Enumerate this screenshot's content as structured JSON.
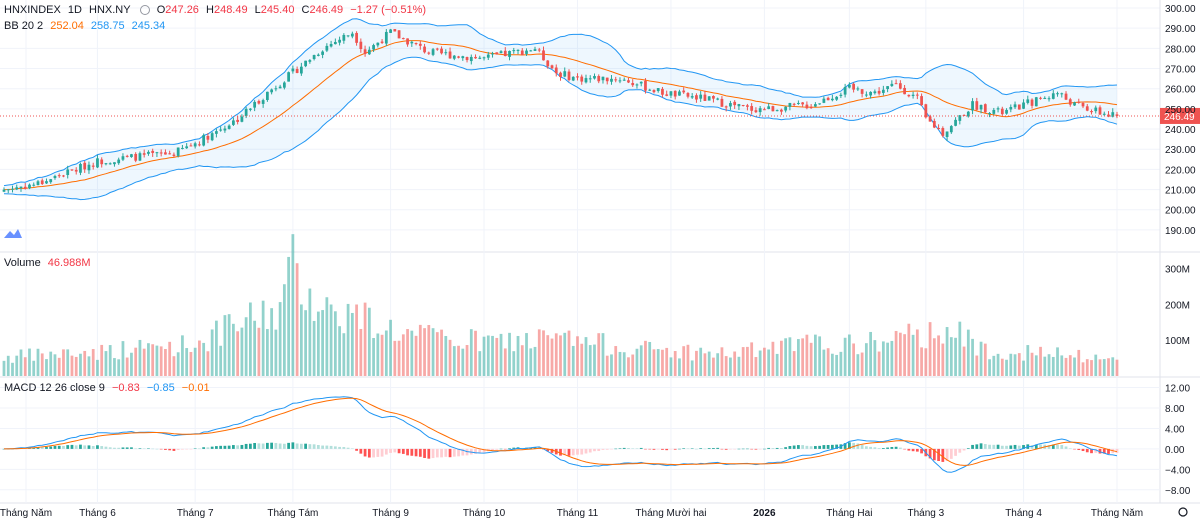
{
  "header": {
    "symbol": "HNXINDEX",
    "interval": "1D",
    "exchange": "HNX.NY",
    "open_label": "O",
    "open": "247.26",
    "high_label": "H",
    "high": "248.49",
    "low_label": "L",
    "low": "245.40",
    "close_label": "C",
    "close": "246.49",
    "change": "−1.27 (−0.51%)"
  },
  "bb_legend": {
    "label": "BB 20 2",
    "basis": "252.04",
    "upper": "258.75",
    "lower": "245.34"
  },
  "volume_legend": {
    "label": "Volume",
    "value": "46.988M"
  },
  "macd_legend": {
    "label": "MACD 12 26 close 9",
    "hist": "−0.83",
    "macd": "−0.85",
    "signal": "−0.01"
  },
  "last_price_tag": "246.49",
  "colors": {
    "up": "#26a69a",
    "down": "#ef5350",
    "bb": "#2196f3",
    "basis": "#ff6d00",
    "bb_fill": "#2196f3"
  },
  "chart_data": {
    "type": "candlestick",
    "price_axis": {
      "min": 185,
      "max": 300,
      "ticks": [
        "300.00",
        "290.00",
        "280.00",
        "270.00",
        "260.00",
        "250.00",
        "240.00",
        "230.00",
        "220.00",
        "210.00",
        "200.00",
        "190.00"
      ]
    },
    "volume_axis": {
      "ticks": [
        "300M",
        "200M",
        "100M"
      ]
    },
    "macd_axis": {
      "ticks": [
        "12.00",
        "8.00",
        "4.00",
        "0.00",
        "−4.00",
        "−8.00"
      ]
    },
    "time_labels": [
      "Tháng Năm",
      "Tháng 6",
      "Tháng 7",
      "Tháng Tám",
      "Tháng 9",
      "Tháng 10",
      "Tháng 11",
      "Tháng Mười hai",
      "2026",
      "Tháng Hai",
      "Tháng 3",
      "Tháng 4",
      "Tháng Năm"
    ],
    "bars_per_label": [
      0,
      22,
      45,
      68,
      91,
      113,
      135,
      157,
      179,
      199,
      217,
      240,
      262
    ],
    "price_keypoints": [
      [
        0,
        210
      ],
      [
        8,
        213
      ],
      [
        22,
        224
      ],
      [
        30,
        226
      ],
      [
        40,
        228
      ],
      [
        45,
        233
      ],
      [
        55,
        245
      ],
      [
        62,
        258
      ],
      [
        68,
        268
      ],
      [
        75,
        280
      ],
      [
        82,
        288
      ],
      [
        85,
        278
      ],
      [
        91,
        288
      ],
      [
        100,
        278
      ],
      [
        113,
        275
      ],
      [
        125,
        280
      ],
      [
        130,
        268
      ],
      [
        135,
        265
      ],
      [
        145,
        265
      ],
      [
        155,
        258
      ],
      [
        165,
        255
      ],
      [
        175,
        250
      ],
      [
        180,
        250
      ],
      [
        190,
        252
      ],
      [
        199,
        260
      ],
      [
        205,
        258
      ],
      [
        210,
        262
      ],
      [
        215,
        255
      ],
      [
        217,
        245
      ],
      [
        221,
        238
      ],
      [
        228,
        252
      ],
      [
        235,
        248
      ],
      [
        240,
        252
      ],
      [
        248,
        258
      ],
      [
        252,
        252
      ],
      [
        258,
        248
      ],
      [
        262,
        246
      ]
    ],
    "volume_keypoints": [
      [
        0,
        55
      ],
      [
        20,
        70
      ],
      [
        45,
        95
      ],
      [
        55,
        150
      ],
      [
        65,
        200
      ],
      [
        68,
        320
      ],
      [
        75,
        200
      ],
      [
        85,
        170
      ],
      [
        95,
        120
      ],
      [
        113,
        100
      ],
      [
        130,
        110
      ],
      [
        150,
        80
      ],
      [
        170,
        65
      ],
      [
        190,
        95
      ],
      [
        199,
        90
      ],
      [
        217,
        120
      ],
      [
        221,
        150
      ],
      [
        230,
        80
      ],
      [
        250,
        60
      ],
      [
        262,
        47
      ]
    ],
    "bar_count": 263
  }
}
